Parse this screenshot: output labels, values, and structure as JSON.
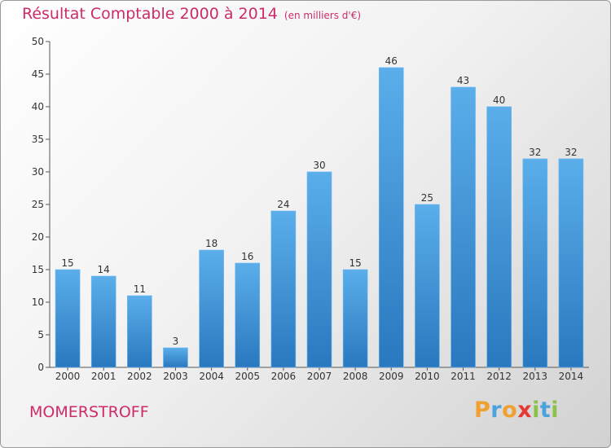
{
  "title": "Résultat Comptable 2000 à 2014",
  "title_unit": "(en milliers d'€)",
  "town": "MOMERSTROFF",
  "logo": {
    "text": "Proxiti",
    "letters": [
      {
        "ch": "P",
        "color": "#f0a030"
      },
      {
        "ch": "r",
        "color": "#4aa3df"
      },
      {
        "ch": "o",
        "color": "#f0a030"
      },
      {
        "ch": "x",
        "color": "#e53935"
      },
      {
        "ch": "i",
        "color": "#8bc34a"
      },
      {
        "ch": "t",
        "color": "#4aa3df"
      },
      {
        "ch": "i",
        "color": "#8bc34a"
      }
    ]
  },
  "colors": {
    "title": "#cc2b6b",
    "bar_light": "#5aaeea",
    "bar_dark": "#2a78bf"
  },
  "chart_data": {
    "type": "bar",
    "categories": [
      "2000",
      "2001",
      "2002",
      "2003",
      "2004",
      "2005",
      "2006",
      "2007",
      "2008",
      "2009",
      "2010",
      "2011",
      "2012",
      "2013",
      "2014"
    ],
    "values": [
      15,
      14,
      11,
      3,
      18,
      16,
      24,
      30,
      15,
      46,
      25,
      43,
      40,
      32,
      32
    ],
    "title": "Résultat Comptable 2000 à 2014",
    "subtitle": "(en milliers d'€)",
    "xlabel": "",
    "ylabel": "",
    "ylim": [
      0,
      50
    ],
    "yticks": [
      0,
      5,
      10,
      15,
      20,
      25,
      30,
      35,
      40,
      45,
      50
    ],
    "grid": false,
    "legend": "none",
    "data_labels": true
  }
}
